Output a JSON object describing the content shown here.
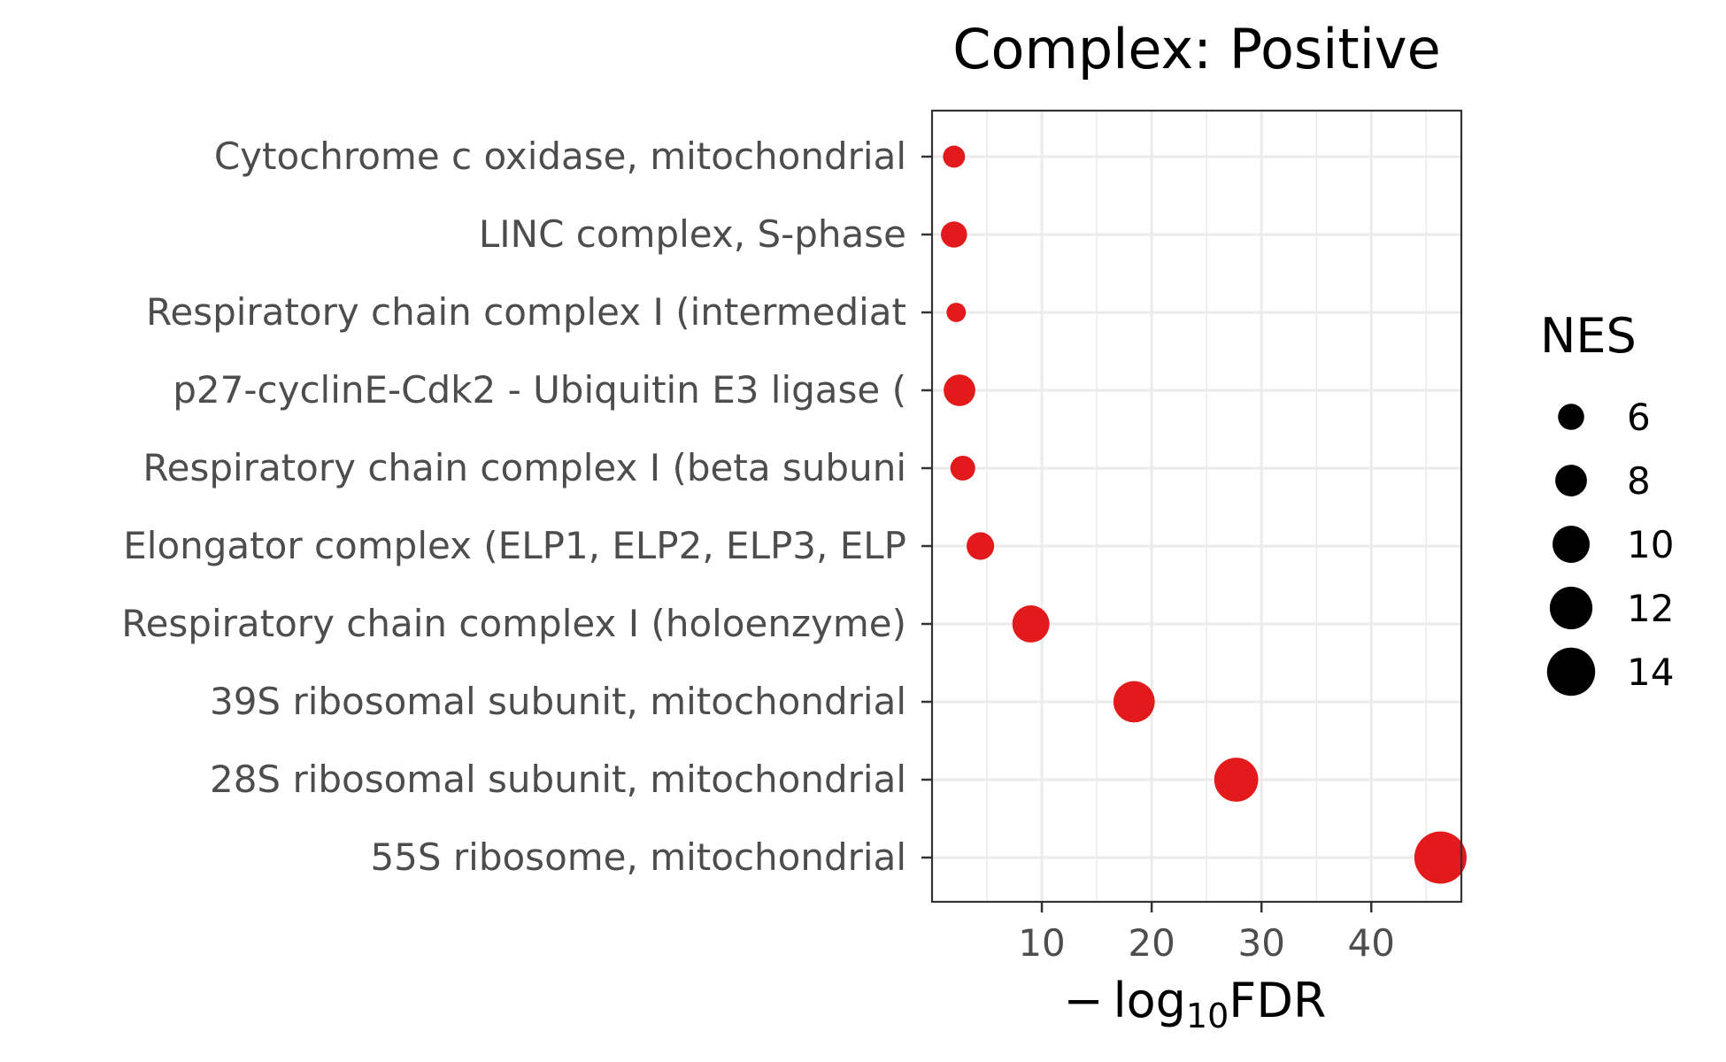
{
  "chart_data": {
    "type": "scatter",
    "title": "Complex: Positive",
    "xlabel_prefix": "− log",
    "xlabel_sub": "10",
    "xlabel_suffix": "FDR",
    "ylabel": "",
    "xlim": [
      0,
      48.2
    ],
    "xticks": [
      10,
      20,
      30,
      40
    ],
    "grid": true,
    "point_color": "#e31a1c",
    "categories": [
      "Cytochrome c oxidase, mitochondrial",
      "LINC complex, S-phase",
      "Respiratory chain complex I (intermediat",
      "p27-cyclinE-Cdk2 - Ubiquitin E3 ligase (",
      "Respiratory chain complex I (beta subuni",
      "Elongator complex (ELP1, ELP2, ELP3, ELP",
      "Respiratory chain complex I (holoenzyme)",
      "39S ribosomal subunit, mitochondrial",
      "28S ribosomal subunit, mitochondrial",
      "55S ribosome, mitochondrial"
    ],
    "x": [
      2.0,
      2.0,
      2.2,
      2.5,
      2.8,
      4.4,
      9.0,
      18.4,
      27.7,
      46.3
    ],
    "nes": [
      4.5,
      6.0,
      3.5,
      8.0,
      5.5,
      6.5,
      10.0,
      11.5,
      12.5,
      15.5
    ],
    "legend": {
      "title": "NES",
      "position": "right",
      "values": [
        6,
        8,
        10,
        12,
        14
      ],
      "labels": [
        "6",
        "8",
        "10",
        "12",
        "14"
      ]
    }
  }
}
